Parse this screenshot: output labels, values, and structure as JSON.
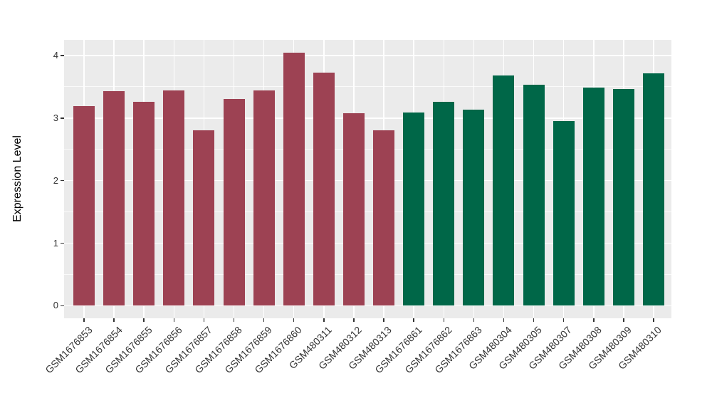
{
  "chart_data": {
    "type": "bar",
    "title": "",
    "xlabel": "",
    "ylabel": "Expression Level",
    "categories": [
      "GSM1676853",
      "GSM1676854",
      "GSM1676855",
      "GSM1676856",
      "GSM1676857",
      "GSM1676858",
      "GSM1676859",
      "GSM1676860",
      "GSM480311",
      "GSM480312",
      "GSM480313",
      "GSM1676861",
      "GSM1676862",
      "GSM1676863",
      "GSM480304",
      "GSM480305",
      "GSM480307",
      "GSM480308",
      "GSM480309",
      "GSM480310"
    ],
    "values": [
      3.19,
      3.43,
      3.26,
      3.44,
      2.8,
      3.31,
      3.44,
      4.05,
      3.73,
      3.08,
      2.81,
      3.09,
      3.26,
      3.14,
      3.68,
      3.53,
      2.95,
      3.49,
      3.47,
      3.71
    ],
    "bar_groups": [
      "group1",
      "group1",
      "group1",
      "group1",
      "group1",
      "group1",
      "group1",
      "group1",
      "group1",
      "group1",
      "group1",
      "group2",
      "group2",
      "group2",
      "group2",
      "group2",
      "group2",
      "group2",
      "group2",
      "group2"
    ],
    "group_colors": {
      "group1": "#9D4253",
      "group2": "#006748"
    },
    "yticks": [
      0,
      1,
      2,
      3,
      4
    ],
    "ylim": [
      -0.2,
      4.25
    ],
    "x_tick_rotation_deg": 45,
    "grid": true,
    "legend": "none",
    "panel_background": "#EBEBEB",
    "gridline_color": "#FFFFFF",
    "axis_text_color": "#333333",
    "axis_title_color": "#000000",
    "background": "#FFFFFF"
  }
}
